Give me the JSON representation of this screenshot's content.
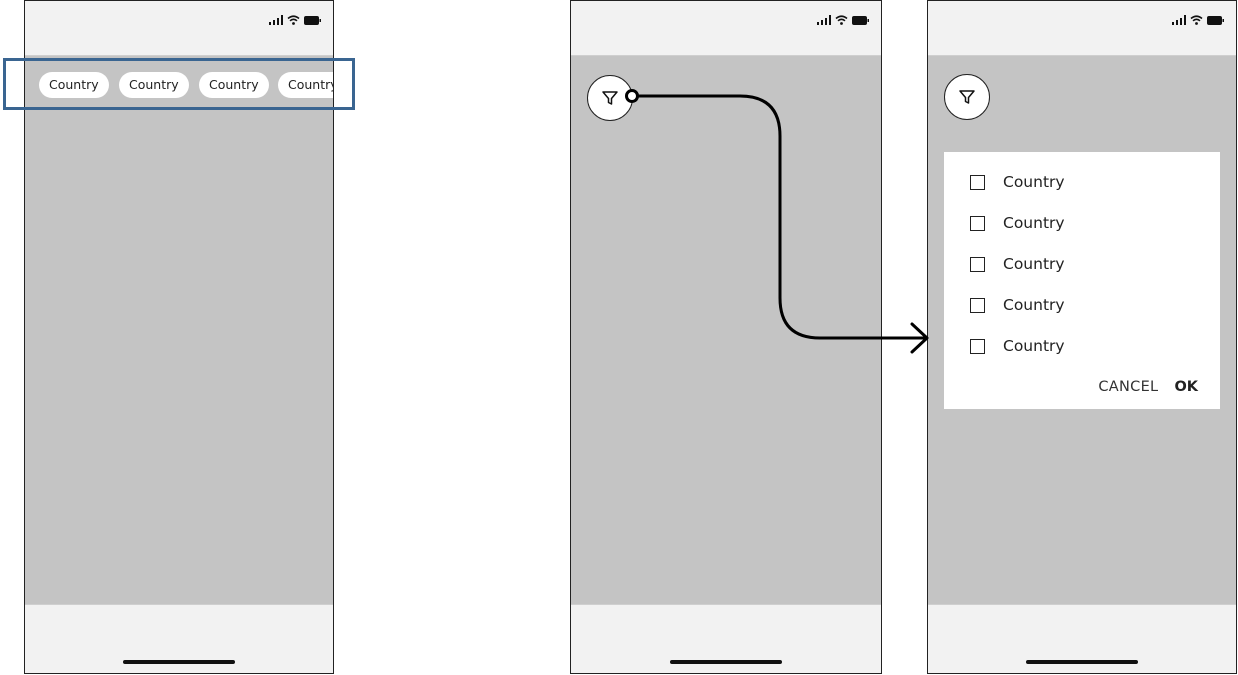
{
  "screens": {
    "chips": {
      "items": [
        {
          "label": "Country"
        },
        {
          "label": "Country"
        },
        {
          "label": "Country"
        },
        {
          "label": "Country"
        }
      ]
    },
    "dialog": {
      "options": [
        {
          "label": "Country"
        },
        {
          "label": "Country"
        },
        {
          "label": "Country"
        },
        {
          "label": "Country"
        },
        {
          "label": "Country"
        }
      ],
      "cancel_label": "CANCEL",
      "ok_label": "OK"
    }
  },
  "icons": {
    "status": [
      "signal-icon",
      "wifi-icon",
      "battery-icon"
    ],
    "filter": "filter-icon"
  },
  "colors": {
    "content_bg": "#c4c4c4",
    "bar_bg": "#f2f2f2",
    "highlight_border": "#3a6591"
  }
}
